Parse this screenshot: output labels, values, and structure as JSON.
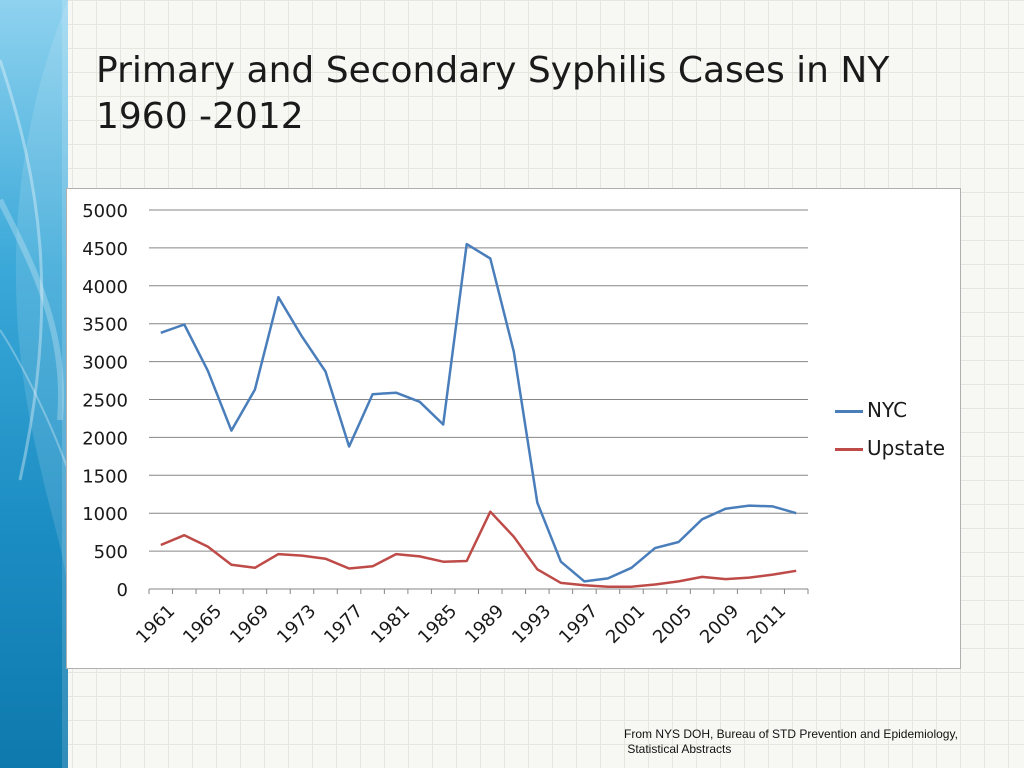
{
  "slide": {
    "title_line1": "Primary and Secondary Syphilis Cases in NY",
    "title_line2": "1960 -2012",
    "source_line1": "From NYS DOH, Bureau of STD Prevention and Epidemiology,",
    "source_line2": " Statistical Abstracts"
  },
  "colors": {
    "nyc": "#4a7ebb",
    "upstate": "#be4b48",
    "gridline": "#868686",
    "sidebar": "#1b8cc2"
  },
  "chart_data": {
    "type": "line",
    "title": "",
    "xlabel": "",
    "ylabel": "",
    "ylim": [
      0,
      5000
    ],
    "yticks": [
      0,
      500,
      1000,
      1500,
      2000,
      2500,
      3000,
      3500,
      4000,
      4500,
      5000
    ],
    "grid": true,
    "legend_position": "right",
    "x": [
      1961,
      1963,
      1965,
      1967,
      1969,
      1971,
      1973,
      1975,
      1977,
      1979,
      1981,
      1983,
      1985,
      1987,
      1989,
      1991,
      1993,
      1995,
      1997,
      1999,
      2001,
      2003,
      2005,
      2007,
      2009,
      2010,
      2011,
      2012
    ],
    "x_tick_labels": [
      "1961",
      "1965",
      "1969",
      "1973",
      "1977",
      "1981",
      "1985",
      "1989",
      "1993",
      "1997",
      "2001",
      "2005",
      "2009",
      "2011"
    ],
    "series": [
      {
        "name": "NYC",
        "values": [
          3380,
          3490,
          2880,
          2090,
          2630,
          3850,
          3330,
          2870,
          1880,
          2570,
          2590,
          2470,
          2170,
          4550,
          4360,
          3130,
          1140,
          360,
          100,
          140,
          280,
          540,
          620,
          920,
          1060,
          1100,
          1090,
          1000
        ]
      },
      {
        "name": "Upstate",
        "values": [
          580,
          710,
          560,
          320,
          280,
          460,
          440,
          400,
          270,
          300,
          460,
          430,
          360,
          370,
          1020,
          690,
          260,
          80,
          50,
          30,
          30,
          60,
          100,
          160,
          130,
          150,
          190,
          240
        ]
      }
    ]
  }
}
